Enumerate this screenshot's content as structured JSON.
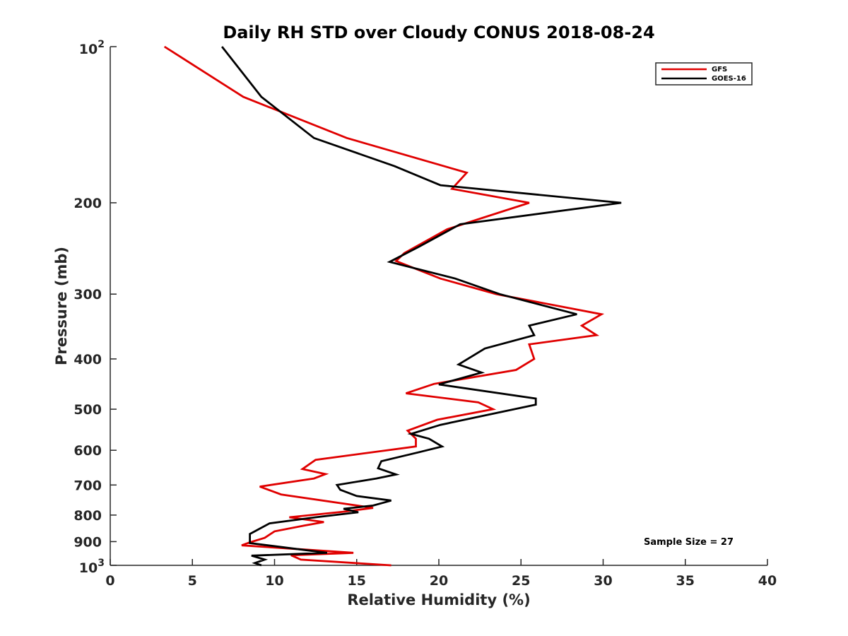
{
  "chart_data": {
    "type": "line",
    "title": "Daily RH STD over Cloudy CONUS 2018-08-24",
    "xlabel": "Relative Humidity (%)",
    "ylabel": "Pressure (mb)",
    "xlim": [
      0,
      40
    ],
    "ylim": [
      1000,
      100
    ],
    "y_scale": "log",
    "y_reversed": true,
    "x_ticks": [
      "0",
      "5",
      "10",
      "15",
      "20",
      "25",
      "30",
      "35",
      "40"
    ],
    "x_tick_values": [
      0,
      5,
      10,
      15,
      20,
      25,
      30,
      35,
      40
    ],
    "y_ticks": [
      {
        "value": 100,
        "base": "10",
        "exp": "2",
        "text": ""
      },
      {
        "value": 200,
        "base": "",
        "exp": "",
        "text": "200"
      },
      {
        "value": 300,
        "base": "",
        "exp": "",
        "text": "300"
      },
      {
        "value": 400,
        "base": "",
        "exp": "",
        "text": "400"
      },
      {
        "value": 500,
        "base": "",
        "exp": "",
        "text": "500"
      },
      {
        "value": 600,
        "base": "",
        "exp": "",
        "text": "600"
      },
      {
        "value": 700,
        "base": "",
        "exp": "",
        "text": "700"
      },
      {
        "value": 800,
        "base": "",
        "exp": "",
        "text": "800"
      },
      {
        "value": 900,
        "base": "",
        "exp": "",
        "text": "900"
      },
      {
        "value": 1000,
        "base": "10",
        "exp": "3",
        "text": ""
      }
    ],
    "legend_position": "top-right",
    "annotation": "Sample Size = 27",
    "series": [
      {
        "name": "GFS",
        "color": "#e00000",
        "points": [
          [
            3.3,
            100
          ],
          [
            8.1,
            125
          ],
          [
            14.4,
            150
          ],
          [
            21.7,
            175
          ],
          [
            20.8,
            188
          ],
          [
            25.5,
            200
          ],
          [
            20.5,
            225
          ],
          [
            17.9,
            250
          ],
          [
            17.4,
            259
          ],
          [
            20.1,
            280
          ],
          [
            23.5,
            300
          ],
          [
            29.9,
            328
          ],
          [
            28.7,
            345
          ],
          [
            29.6,
            360
          ],
          [
            25.5,
            375
          ],
          [
            25.8,
            400
          ],
          [
            24.7,
            420
          ],
          [
            19.7,
            447
          ],
          [
            18.0,
            466
          ],
          [
            22.4,
            485
          ],
          [
            23.3,
            500
          ],
          [
            19.9,
            524
          ],
          [
            18.1,
            550
          ],
          [
            18.6,
            570
          ],
          [
            18.6,
            590
          ],
          [
            12.5,
            626
          ],
          [
            11.7,
            652
          ],
          [
            13.1,
            667
          ],
          [
            12.4,
            680
          ],
          [
            9.1,
            705
          ],
          [
            10.4,
            730
          ],
          [
            16.0,
            775
          ],
          [
            14.2,
            788
          ],
          [
            10.9,
            808
          ],
          [
            13.0,
            825
          ],
          [
            11.8,
            838
          ],
          [
            10.0,
            860
          ],
          [
            9.4,
            885
          ],
          [
            8.5,
            903
          ],
          [
            8.0,
            915
          ],
          [
            14.8,
            946
          ],
          [
            11.0,
            956
          ],
          [
            11.6,
            975
          ],
          [
            17.1,
            1000
          ]
        ]
      },
      {
        "name": "GOES-16",
        "color": "#000000",
        "points": [
          [
            6.8,
            100
          ],
          [
            9.2,
            125
          ],
          [
            12.4,
            150
          ],
          [
            17.3,
            170
          ],
          [
            20.1,
            185
          ],
          [
            31.1,
            200
          ],
          [
            21.3,
            220
          ],
          [
            18.8,
            243
          ],
          [
            17.0,
            260
          ],
          [
            21.0,
            280
          ],
          [
            23.7,
            300
          ],
          [
            28.4,
            328
          ],
          [
            25.5,
            345
          ],
          [
            25.8,
            360
          ],
          [
            22.8,
            382
          ],
          [
            21.2,
            410
          ],
          [
            22.6,
            425
          ],
          [
            20.0,
            448
          ],
          [
            25.9,
            477
          ],
          [
            25.9,
            490
          ],
          [
            20.1,
            536
          ],
          [
            18.3,
            558
          ],
          [
            19.4,
            570
          ],
          [
            20.2,
            590
          ],
          [
            18.9,
            604
          ],
          [
            16.5,
            630
          ],
          [
            16.3,
            650
          ],
          [
            17.4,
            668
          ],
          [
            16.2,
            680
          ],
          [
            13.8,
            700
          ],
          [
            14.0,
            715
          ],
          [
            15.0,
            735
          ],
          [
            17.1,
            750
          ],
          [
            16.0,
            767
          ],
          [
            14.2,
            778
          ],
          [
            15.1,
            790
          ],
          [
            12.5,
            808
          ],
          [
            9.7,
            830
          ],
          [
            8.5,
            870
          ],
          [
            8.5,
            906
          ],
          [
            13.2,
            946
          ],
          [
            8.6,
            958
          ],
          [
            9.4,
            975
          ],
          [
            8.8,
            990
          ],
          [
            9.2,
            1000
          ]
        ]
      }
    ]
  }
}
